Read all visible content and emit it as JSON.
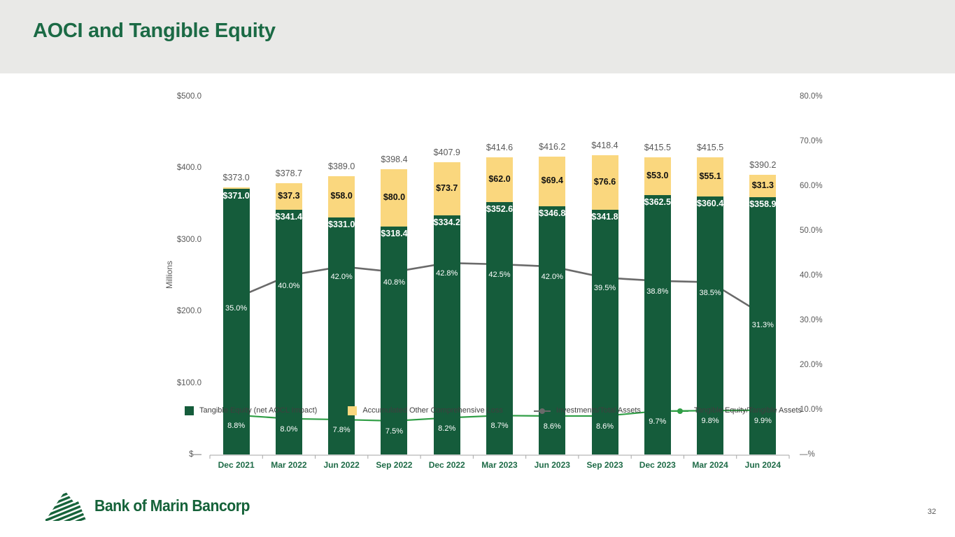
{
  "header": {
    "title": "AOCI and Tangible Equity"
  },
  "footer": {
    "logo_text": "Bank of Marin Bancorp",
    "page_number": "32"
  },
  "colors": {
    "title_green": "#1B6A45",
    "bar_green": "#155C3B",
    "bar_yellow": "#FAD77E",
    "line_gray": "#6A6A6A",
    "line_green": "#2F9E45",
    "axis_text": "#595959",
    "x_label_green": "#1E6B47",
    "header_bg": "#E9E9E7",
    "axis_line": "#A6A6A6"
  },
  "chart_data": {
    "type": "combo-stacked-bar-with-lines",
    "categories": [
      "Dec 2021",
      "Mar 2022",
      "Jun 2022",
      "Sep 2022",
      "Dec 2022",
      "Mar 2023",
      "Jun 2023",
      "Sep 2023",
      "Dec 2023",
      "Mar 2024",
      "Jun 2024"
    ],
    "series": [
      {
        "name": "Tangible Equity (net AOCL Impact)",
        "type": "bar",
        "axis": "left",
        "color": "#155C3B",
        "values": [
          371.0,
          341.4,
          331.0,
          318.4,
          334.2,
          352.6,
          346.8,
          341.8,
          362.5,
          360.4,
          358.9
        ],
        "labels": [
          "$371.0",
          "$341.4",
          "$331.0",
          "$318.4",
          "$334.2",
          "$352.6",
          "$346.8",
          "$341.8",
          "$362.5",
          "$360.4",
          "$358.9"
        ],
        "label_color": "#ffffff"
      },
      {
        "name": "Accumulated Other Comprehensive Loss",
        "type": "bar",
        "axis": "left",
        "color": "#FAD77E",
        "values": [
          2.0,
          37.3,
          58.0,
          80.0,
          73.7,
          62.0,
          69.4,
          76.6,
          53.0,
          55.1,
          31.3
        ],
        "labels": [
          null,
          "$37.3",
          "$58.0",
          "$80.0",
          "$73.7",
          "$62.0",
          "$69.4",
          "$76.6",
          "$53.0",
          "$55.1",
          "$31.3"
        ],
        "label_color": "#111111"
      },
      {
        "name": "Investments/Total Assets",
        "type": "line",
        "axis": "right",
        "color": "#6A6A6A",
        "values": [
          35.0,
          40.0,
          42.0,
          40.8,
          42.8,
          42.5,
          42.0,
          39.5,
          38.8,
          38.5,
          31.3
        ],
        "labels": [
          "35.0%",
          "40.0%",
          "42.0%",
          "40.8%",
          "42.8%",
          "42.5%",
          "42.0%",
          "39.5%",
          "38.8%",
          "38.5%",
          "31.3%"
        ]
      },
      {
        "name": "Tangible Equity/Tangible Assets",
        "type": "line",
        "axis": "right",
        "color": "#2F9E45",
        "values": [
          8.8,
          8.0,
          7.8,
          7.5,
          8.2,
          8.7,
          8.6,
          8.6,
          9.7,
          9.8,
          9.9
        ],
        "labels": [
          "8.8%",
          "8.0%",
          "7.8%",
          "7.5%",
          "8.2%",
          "8.7%",
          "8.6%",
          "8.6%",
          "9.7%",
          "9.8%",
          "9.9%"
        ]
      }
    ],
    "bar_totals": [
      373.0,
      378.7,
      389.0,
      398.4,
      407.9,
      414.6,
      416.2,
      418.4,
      415.5,
      415.5,
      390.2
    ],
    "bar_total_labels": [
      "$373.0",
      "$378.7",
      "$389.0",
      "$398.4",
      "$407.9",
      "$414.6",
      "$416.2",
      "$418.4",
      "$415.5",
      "$415.5",
      "$390.2"
    ],
    "left_axis": {
      "title": "Millions",
      "ticks": [
        "$500.0",
        "$400.0",
        "$300.0",
        "$200.0",
        "$100.0",
        "$—"
      ],
      "tick_values": [
        500,
        400,
        300,
        200,
        100,
        0
      ],
      "range": [
        0,
        500
      ]
    },
    "right_axis": {
      "ticks": [
        "80.0%",
        "70.0%",
        "60.0%",
        "50.0%",
        "40.0%",
        "30.0%",
        "20.0%",
        "10.0%",
        "—%"
      ],
      "tick_values": [
        80,
        70,
        60,
        50,
        40,
        30,
        20,
        10,
        0
      ],
      "range": [
        0,
        80
      ]
    },
    "legend": [
      {
        "label": "Tangible Equity (net AOCL Impact)",
        "swatch": "square",
        "color": "#155C3B"
      },
      {
        "label": "Accumulated Other Comprehensive Loss",
        "swatch": "square",
        "color": "#FAD77E"
      },
      {
        "label": "Investments/Total Assets",
        "swatch": "line",
        "color": "#6A6A6A"
      },
      {
        "label": "Tangible Equity/Tangible Assets",
        "swatch": "line",
        "color": "#2F9E45"
      }
    ],
    "grid": false,
    "legend_position": "bottom"
  }
}
